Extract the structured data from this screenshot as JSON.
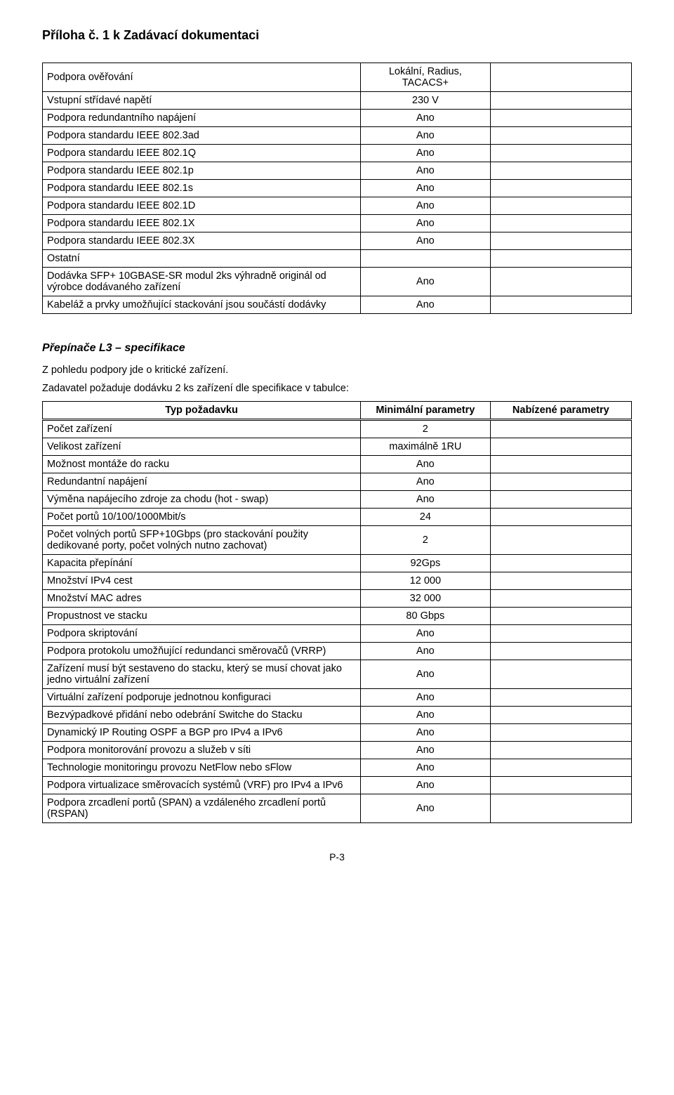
{
  "page_title": "Příloha č. 1 k Zadávací dokumentaci",
  "yes": "Ano",
  "table1": {
    "rows": [
      {
        "label": "Podpora ověřování",
        "value": "Lokální, Radius, TACACS+"
      },
      {
        "label": "Vstupní střídavé napětí",
        "value": "230 V"
      },
      {
        "label": "Podpora redundantního napájení",
        "value": "Ano"
      },
      {
        "label": "Podpora standardu  IEEE 802.3ad",
        "value": "Ano"
      },
      {
        "label": "Podpora standardu IEEE 802.1Q",
        "value": "Ano"
      },
      {
        "label": "Podpora standardu IEEE 802.1p",
        "value": "Ano"
      },
      {
        "label": "Podpora standardu IEEE 802.1s",
        "value": "Ano"
      },
      {
        "label": "Podpora standardu IEEE 802.1D",
        "value": "Ano"
      },
      {
        "label": "Podpora standardu IEEE 802.1X",
        "value": "Ano"
      },
      {
        "label": "Podpora standardu IEEE 802.3X",
        "value": "Ano"
      },
      {
        "label": "Ostatní",
        "value": ""
      },
      {
        "label": "Dodávka SFP+ 10GBASE-SR modul 2ks  výhradně originál od výrobce dodávaného zařízení",
        "value": "Ano"
      },
      {
        "label": "Kabeláž a prvky umožňující stackování jsou součástí dodávky",
        "value": "Ano"
      }
    ]
  },
  "section2": {
    "heading": "Přepínače L3 – specifikace",
    "line1": "Z pohledu podpory jde o kritické zařízení.",
    "line2": "Zadavatel požaduje dodávku 2 ks zařízení dle specifikace v tabulce:"
  },
  "table2": {
    "header": {
      "col1": "Typ požadavku",
      "col2": "Minimální parametry",
      "col3": "Nabízené parametry"
    },
    "rows": [
      {
        "label": "Počet zařízení",
        "value": "2"
      },
      {
        "label": "Velikost zařízení",
        "value": "maximálně 1RU"
      },
      {
        "label": "Možnost montáže do racku",
        "value": "Ano"
      },
      {
        "label": "Redundantní napájení",
        "value": "Ano"
      },
      {
        "label": "Výměna napájecího zdroje za chodu (hot - swap)",
        "value": "Ano"
      },
      {
        "label": "Počet portů 10/100/1000Mbit/s",
        "value": "24"
      },
      {
        "label": "Počet volných portů SFP+10Gbps (pro stackování použity dedikované porty, počet volných nutno zachovat)",
        "value": "2"
      },
      {
        "label": "Kapacita přepínání",
        "value": "92Gps"
      },
      {
        "label": "Množství IPv4 cest",
        "value": "12 000"
      },
      {
        "label": "Množství MAC adres",
        "value": "32 000"
      },
      {
        "label": "Propustnost ve stacku",
        "value": "80 Gbps"
      },
      {
        "label": "Podpora skriptování",
        "value": "Ano"
      },
      {
        "label": "Podpora protokolu umožňující redundanci směrovačů (VRRP)",
        "value": "Ano"
      },
      {
        "label": "Zařízení musí být sestaveno do stacku, který se musí chovat jako jedno virtuální zařízení",
        "value": "Ano"
      },
      {
        "label": "Virtuální zařízení podporuje jednotnou konfiguraci",
        "value": "Ano"
      },
      {
        "label": "Bezvýpadkové přidání nebo odebrání Switche do Stacku",
        "value": "Ano"
      },
      {
        "label": "Dynamický IP Routing OSPF a BGP pro IPv4 a IPv6",
        "value": "Ano"
      },
      {
        "label": "Podpora monitorování provozu a služeb v síti",
        "value": "Ano"
      },
      {
        "label": "Technologie monitoringu provozu NetFlow nebo sFlow",
        "value": "Ano"
      },
      {
        "label": "Podpora virtualizace směrovacích systémů (VRF) pro IPv4 a IPv6",
        "value": "Ano"
      },
      {
        "label": "Podpora zrcadlení portů (SPAN) a vzdáleného zrcadlení portů (RSPAN)",
        "value": "Ano"
      }
    ]
  },
  "page_number": "P-3"
}
